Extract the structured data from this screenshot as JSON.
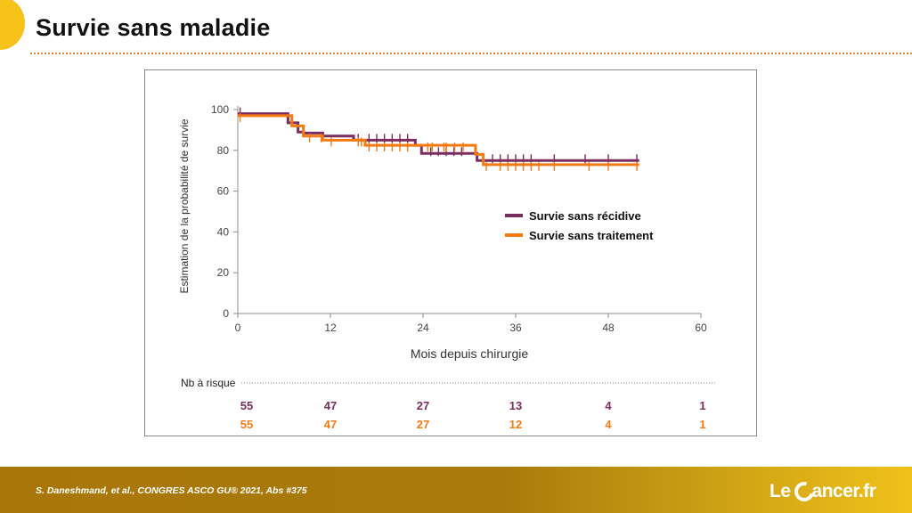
{
  "slide": {
    "title": "Survie sans maladie"
  },
  "footer": {
    "citation": "S. Daneshmand, et al., CONGRES ASCO GU® 2021, Abs #375",
    "brand_prefix": "Le",
    "brand_suffix": "ancer.fr",
    "brand_logo_icon": "c-circle-logo-icon"
  },
  "colors": {
    "accent": "#f7c21a",
    "series1": "#7b2d5e",
    "series2": "#f57a10",
    "footer": "#a9760a"
  },
  "chart_data": {
    "type": "line",
    "step": true,
    "xlabel": "Mois depuis chirurgie",
    "ylabel": "Estimation de la probabilité de survie",
    "xlim": [
      0,
      60
    ],
    "ylim": [
      0,
      100
    ],
    "xticks": [
      0,
      12,
      24,
      36,
      48,
      60
    ],
    "yticks": [
      0,
      20,
      40,
      60,
      80,
      100
    ],
    "grid": false,
    "legend_position": "right",
    "series": [
      {
        "name": "Survie sans récidive",
        "color": "#7b2d5e",
        "steps": [
          [
            0,
            98
          ],
          [
            6.5,
            98
          ],
          [
            6.5,
            93.5
          ],
          [
            7.8,
            93.5
          ],
          [
            7.8,
            89
          ],
          [
            8.5,
            89
          ],
          [
            8.5,
            88.5
          ],
          [
            11,
            88.5
          ],
          [
            11,
            87
          ],
          [
            15,
            87
          ],
          [
            15,
            85
          ],
          [
            23,
            85
          ],
          [
            23,
            82.5
          ],
          [
            23.8,
            82.5
          ],
          [
            23.8,
            78.5
          ],
          [
            31,
            78.5
          ],
          [
            31,
            75
          ],
          [
            52,
            75
          ]
        ],
        "censored": [
          0.3,
          15.6,
          17,
          18,
          19,
          20,
          21,
          22,
          25,
          26,
          27,
          28,
          29,
          33,
          34,
          35,
          36,
          37,
          38,
          41,
          45,
          48,
          51.7
        ]
      },
      {
        "name": "Survie sans traitement",
        "color": "#f57a10",
        "steps": [
          [
            0,
            97
          ],
          [
            7,
            97
          ],
          [
            7,
            92
          ],
          [
            8.5,
            92
          ],
          [
            8.5,
            87
          ],
          [
            11,
            87
          ],
          [
            11,
            85
          ],
          [
            16.5,
            85
          ],
          [
            16.5,
            82.5
          ],
          [
            30.8,
            82.5
          ],
          [
            30.8,
            78
          ],
          [
            31.8,
            78
          ],
          [
            31.8,
            73
          ],
          [
            52,
            73
          ]
        ],
        "censored": [
          0.3,
          9.3,
          10.8,
          12.1,
          15.6,
          16,
          17,
          18,
          19,
          20,
          21,
          22,
          24.6,
          25.2,
          26.7,
          27,
          28.1,
          29.2,
          32.2,
          34,
          35,
          36,
          37,
          38,
          39,
          41,
          45.5,
          48,
          51.7
        ]
      }
    ],
    "risk_table": {
      "label": "Nb à risque",
      "times": [
        0,
        12,
        24,
        36,
        48,
        60
      ],
      "rows": [
        {
          "series": "Survie sans récidive",
          "color": "#7b2d5e",
          "values": [
            "55",
            "47",
            "27",
            "13",
            "4",
            "1"
          ]
        },
        {
          "series": "Survie sans traitement",
          "color": "#f57a10",
          "values": [
            "55",
            "47",
            "27",
            "12",
            "4",
            "1"
          ]
        }
      ]
    }
  }
}
